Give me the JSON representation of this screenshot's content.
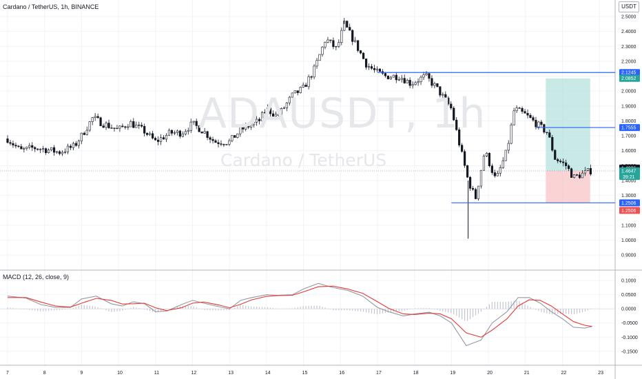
{
  "header": {
    "symbol_title": "Cardano / TetherUS, 1h, BINANCE",
    "currency_button": "USDT"
  },
  "watermark": {
    "ticker": "ADAUSDT, 1h",
    "name": "Cardano / TetherUS"
  },
  "colors": {
    "bull": "#26a69a",
    "bear": "#ef5350",
    "candle": "#131722",
    "level_line": "#2962ff",
    "profit_zone": "#b2dfdb",
    "loss_zone": "#f8c6c6",
    "macd_line": "#9598a1",
    "signal_line": "#e53935",
    "histogram": "#c3c6cf",
    "grid": "#f0f3fa"
  },
  "chart_data": [
    {
      "type": "candlestick",
      "title": "Cardano / TetherUS, 1h, BINANCE",
      "x_ticks": [
        "7",
        "8",
        "9",
        "10",
        "11",
        "12",
        "13",
        "14",
        "15",
        "16",
        "17",
        "18",
        "19",
        "20",
        "21",
        "22",
        "23"
      ],
      "y_ticks": [
        "0.9000",
        "1.0000",
        "1.1000",
        "1.2000",
        "1.3000",
        "1.4000",
        "1.5000",
        "1.6000",
        "1.7000",
        "1.8000",
        "1.9000",
        "2.0000",
        "2.1000",
        "2.2000",
        "2.3000",
        "2.4000",
        "2.5000"
      ],
      "ylim": [
        0.85,
        2.56
      ],
      "close_path": [
        [
          0,
          1.68
        ],
        [
          0.35,
          1.6
        ],
        [
          0.7,
          1.62
        ],
        [
          1.0,
          1.61
        ],
        [
          1.4,
          1.59
        ],
        [
          1.8,
          1.63
        ],
        [
          2.0,
          1.7
        ],
        [
          2.3,
          1.82
        ],
        [
          2.6,
          1.78
        ],
        [
          3.0,
          1.74
        ],
        [
          3.3,
          1.79
        ],
        [
          3.7,
          1.73
        ],
        [
          4.0,
          1.66
        ],
        [
          4.4,
          1.72
        ],
        [
          4.7,
          1.72
        ],
        [
          5.0,
          1.78
        ],
        [
          5.3,
          1.73
        ],
        [
          5.6,
          1.66
        ],
        [
          6.0,
          1.66
        ],
        [
          6.3,
          1.74
        ],
        [
          6.8,
          1.8
        ],
        [
          7.0,
          1.88
        ],
        [
          7.3,
          1.83
        ],
        [
          7.7,
          1.97
        ],
        [
          8.0,
          2.02
        ],
        [
          8.3,
          2.15
        ],
        [
          8.6,
          2.35
        ],
        [
          8.9,
          2.28
        ],
        [
          9.1,
          2.45
        ],
        [
          9.4,
          2.32
        ],
        [
          9.7,
          2.18
        ],
        [
          9.95,
          2.13
        ],
        [
          10.2,
          2.1
        ],
        [
          10.6,
          2.1
        ],
        [
          10.9,
          2.05
        ],
        [
          11.3,
          2.1
        ],
        [
          11.6,
          2.02
        ],
        [
          12.0,
          1.88
        ],
        [
          12.2,
          1.66
        ],
        [
          12.45,
          1.4
        ],
        [
          12.65,
          1.28
        ],
        [
          12.9,
          1.6
        ],
        [
          13.2,
          1.4
        ],
        [
          13.5,
          1.6
        ],
        [
          13.7,
          1.88
        ],
        [
          14.0,
          1.84
        ],
        [
          14.3,
          1.78
        ],
        [
          14.6,
          1.72
        ],
        [
          14.8,
          1.55
        ],
        [
          15.1,
          1.5
        ],
        [
          15.3,
          1.42
        ],
        [
          15.6,
          1.45
        ],
        [
          15.8,
          1.47
        ]
      ],
      "notable_wicks": [
        {
          "x": 9.1,
          "high": 2.47
        },
        {
          "x": 12.45,
          "low": 1.01
        }
      ],
      "levels": [
        {
          "name": "upper-resistance",
          "value": 2.1245,
          "label": "2.1245",
          "x_from": 10.0
        },
        {
          "name": "mid-level",
          "value": 1.7555,
          "label": "1.7555",
          "x_from": 14.3
        },
        {
          "name": "support",
          "value": 1.2506,
          "label": "1.2506",
          "x_from": 12.0
        }
      ],
      "position_tool": {
        "entry": 1.4647,
        "target": 2.0852,
        "stop": 1.2506,
        "x_from": 14.55,
        "x_to": 15.75,
        "entry_label": "1.4647",
        "target_label": "2.0852",
        "stop_label": "1.2506"
      },
      "last_price": {
        "value": 1.4647,
        "label": "1.4647",
        "countdown": "39:21"
      },
      "extra_price_label": {
        "value": 1.4836,
        "label": "1.4836"
      }
    },
    {
      "type": "line",
      "title": "MACD (12, 26, close, 9)",
      "y_ticks": [
        "0.1000",
        "0.0500",
        "0.0000",
        "-0.0500",
        "-0.1000",
        "-0.1500"
      ],
      "ylim": [
        -0.165,
        0.11
      ],
      "series": [
        {
          "name": "MACD",
          "points": [
            [
              0,
              0.045
            ],
            [
              0.5,
              0.038
            ],
            [
              0.9,
              0.015
            ],
            [
              1.3,
              0.005
            ],
            [
              1.7,
              0.005
            ],
            [
              2.0,
              0.035
            ],
            [
              2.4,
              0.045
            ],
            [
              2.8,
              0.018
            ],
            [
              3.1,
              0.01
            ],
            [
              3.4,
              0.025
            ],
            [
              3.7,
              0.018
            ],
            [
              4.0,
              -0.01
            ],
            [
              4.3,
              -0.008
            ],
            [
              4.7,
              0.015
            ],
            [
              5.0,
              0.03
            ],
            [
              5.3,
              0.02
            ],
            [
              5.7,
              0.008
            ],
            [
              6.0,
              0.0
            ],
            [
              6.3,
              0.03
            ],
            [
              6.6,
              0.04
            ],
            [
              7.0,
              0.05
            ],
            [
              7.3,
              0.048
            ],
            [
              7.7,
              0.05
            ],
            [
              8.0,
              0.07
            ],
            [
              8.4,
              0.09
            ],
            [
              8.8,
              0.075
            ],
            [
              9.2,
              0.065
            ],
            [
              9.6,
              0.045
            ],
            [
              10.0,
              0.005
            ],
            [
              10.3,
              -0.01
            ],
            [
              10.7,
              -0.025
            ],
            [
              11.0,
              -0.018
            ],
            [
              11.4,
              -0.012
            ],
            [
              11.7,
              -0.025
            ],
            [
              12.0,
              -0.05
            ],
            [
              12.4,
              -0.13
            ],
            [
              12.8,
              -0.11
            ],
            [
              13.1,
              -0.05
            ],
            [
              13.5,
              -0.01
            ],
            [
              13.8,
              0.04
            ],
            [
              14.1,
              0.04
            ],
            [
              14.4,
              0.02
            ],
            [
              14.7,
              -0.01
            ],
            [
              15.0,
              -0.035
            ],
            [
              15.3,
              -0.065
            ],
            [
              15.6,
              -0.068
            ],
            [
              15.8,
              -0.062
            ]
          ]
        },
        {
          "name": "Signal",
          "points": [
            [
              0,
              0.04
            ],
            [
              0.5,
              0.04
            ],
            [
              0.9,
              0.024
            ],
            [
              1.3,
              0.01
            ],
            [
              1.7,
              0.006
            ],
            [
              2.0,
              0.02
            ],
            [
              2.4,
              0.037
            ],
            [
              2.8,
              0.03
            ],
            [
              3.1,
              0.017
            ],
            [
              3.4,
              0.018
            ],
            [
              3.7,
              0.02
            ],
            [
              4.0,
              0.004
            ],
            [
              4.3,
              -0.006
            ],
            [
              4.7,
              0.004
            ],
            [
              5.0,
              0.02
            ],
            [
              5.3,
              0.024
            ],
            [
              5.7,
              0.014
            ],
            [
              6.0,
              0.004
            ],
            [
              6.3,
              0.016
            ],
            [
              6.6,
              0.032
            ],
            [
              7.0,
              0.044
            ],
            [
              7.3,
              0.047
            ],
            [
              7.7,
              0.048
            ],
            [
              8.0,
              0.06
            ],
            [
              8.4,
              0.078
            ],
            [
              8.8,
              0.08
            ],
            [
              9.2,
              0.07
            ],
            [
              9.6,
              0.055
            ],
            [
              10.0,
              0.025
            ],
            [
              10.3,
              0.002
            ],
            [
              10.7,
              -0.018
            ],
            [
              11.0,
              -0.02
            ],
            [
              11.4,
              -0.015
            ],
            [
              11.7,
              -0.018
            ],
            [
              12.0,
              -0.035
            ],
            [
              12.4,
              -0.085
            ],
            [
              12.8,
              -0.1
            ],
            [
              13.1,
              -0.075
            ],
            [
              13.5,
              -0.035
            ],
            [
              13.8,
              0.01
            ],
            [
              14.1,
              0.032
            ],
            [
              14.4,
              0.03
            ],
            [
              14.7,
              0.01
            ],
            [
              15.0,
              -0.018
            ],
            [
              15.3,
              -0.045
            ],
            [
              15.6,
              -0.058
            ],
            [
              15.8,
              -0.062
            ]
          ]
        }
      ]
    }
  ]
}
